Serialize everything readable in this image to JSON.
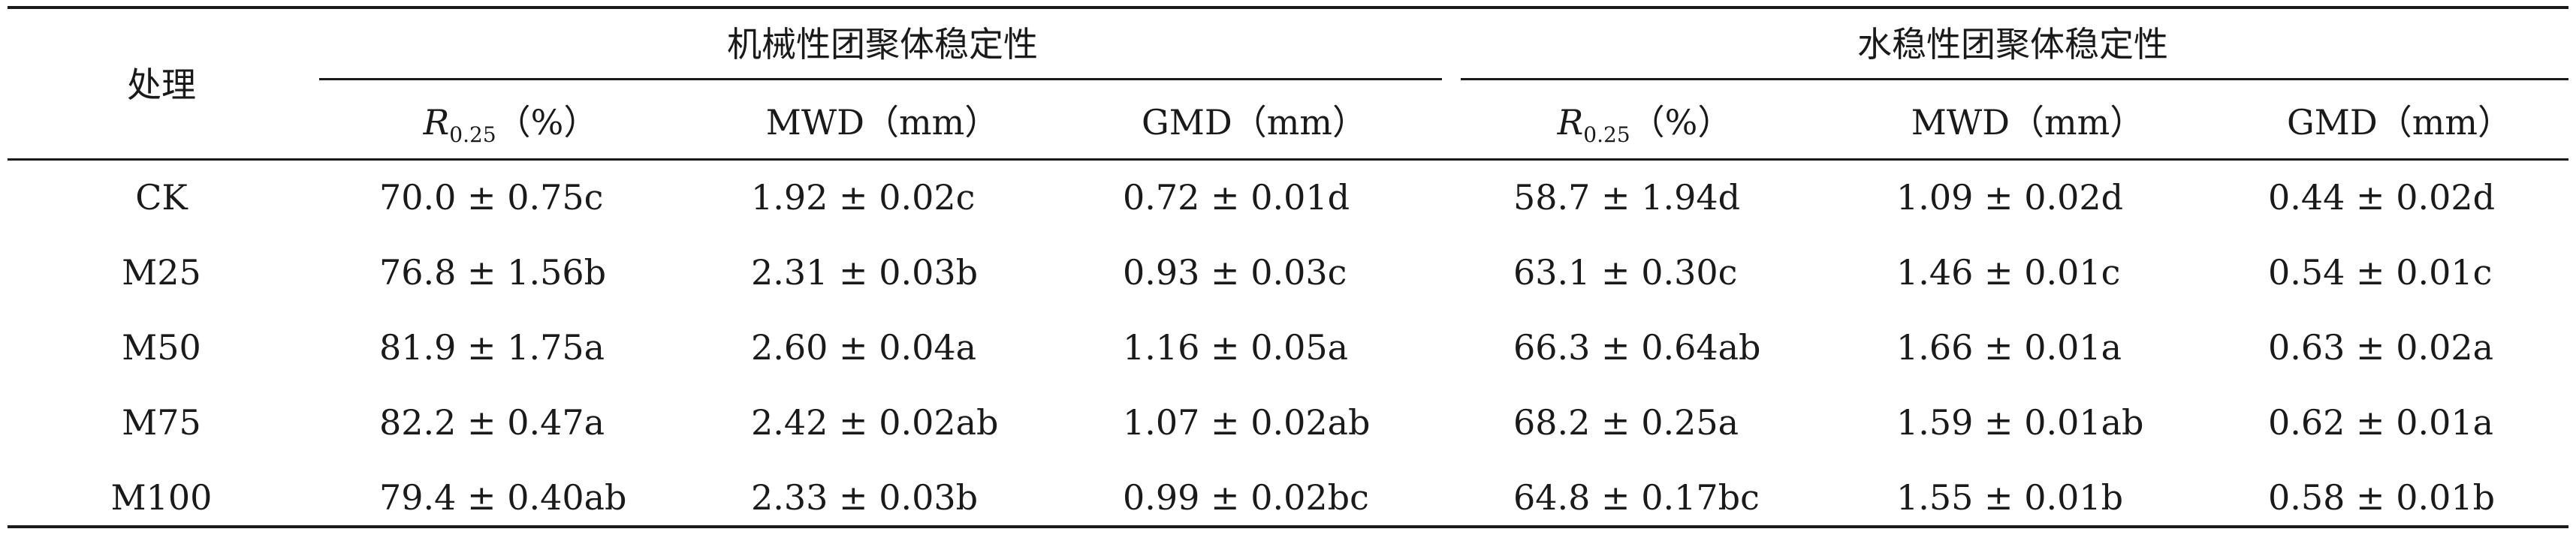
{
  "table": {
    "corner_header": "处理",
    "group_headers": [
      "机械性团聚体稳定性",
      "水稳性团聚体稳定性"
    ],
    "sub_headers": [
      {
        "main": "R",
        "sub": "0.25",
        "unit": "（%）",
        "italic": true
      },
      {
        "main": "MWD",
        "sub": "",
        "unit": "（mm）",
        "italic": false
      },
      {
        "main": "GMD",
        "sub": "",
        "unit": "（mm）",
        "italic": false
      },
      {
        "main": "R",
        "sub": "0.25",
        "unit": "（%）",
        "italic": true
      },
      {
        "main": "MWD",
        "sub": "",
        "unit": "（mm）",
        "italic": false
      },
      {
        "main": "GMD",
        "sub": "",
        "unit": "（mm）",
        "italic": false
      }
    ],
    "rows": [
      {
        "label": "CK",
        "values": [
          "70.0 ± 0.75c",
          "1.92 ± 0.02c",
          "0.72 ± 0.01d",
          "58.7 ± 1.94d",
          "1.09 ± 0.02d",
          "0.44 ± 0.02d"
        ]
      },
      {
        "label": "M25",
        "values": [
          "76.8 ± 1.56b",
          "2.31 ± 0.03b",
          "0.93 ± 0.03c",
          "63.1 ± 0.30c",
          "1.46 ± 0.01c",
          "0.54 ± 0.01c"
        ]
      },
      {
        "label": "M50",
        "values": [
          "81.9 ± 1.75a",
          "2.60 ± 0.04a",
          "1.16 ± 0.05a",
          "66.3 ± 0.64ab",
          "1.66 ± 0.01a",
          "0.63 ± 0.02a"
        ]
      },
      {
        "label": "M75",
        "values": [
          "82.2 ± 0.47a",
          "2.42 ± 0.02ab",
          "1.07 ± 0.02ab",
          "68.2 ± 0.25a",
          "1.59 ± 0.01ab",
          "0.62 ± 0.01a"
        ]
      },
      {
        "label": "M100",
        "values": [
          "79.4 ± 0.40ab",
          "2.33 ± 0.03b",
          "0.99 ± 0.02bc",
          "64.8 ± 0.17bc",
          "1.55 ± 0.01b",
          "0.58 ± 0.01b"
        ]
      }
    ]
  }
}
